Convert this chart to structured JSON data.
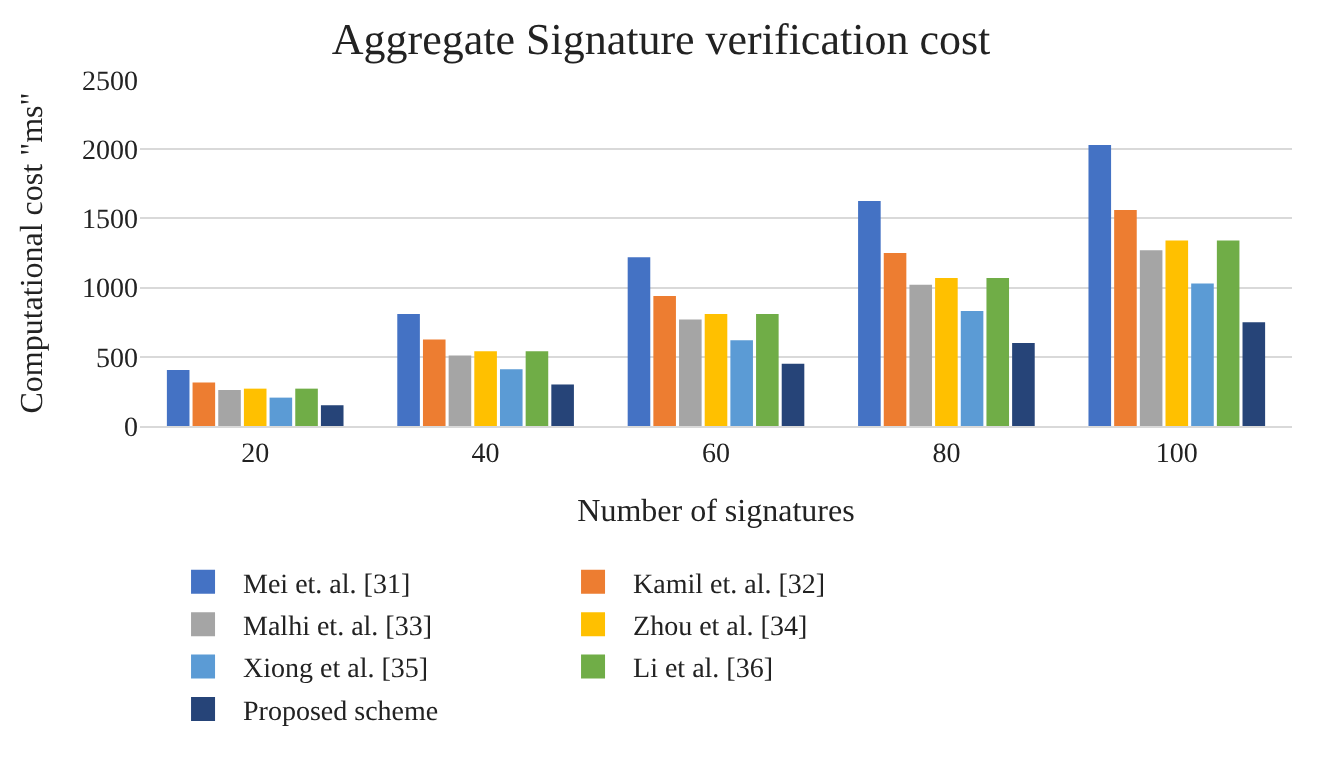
{
  "chart_data": {
    "type": "bar",
    "title": "Aggregate Signature verification cost",
    "xlabel": "Number of signatures",
    "ylabel": "Computational cost \"ms\"",
    "categories": [
      "20",
      "40",
      "60",
      "80",
      "100"
    ],
    "ylim": [
      0,
      2500
    ],
    "yticks": [
      0,
      500,
      1000,
      1500,
      2000,
      2500
    ],
    "grid": "y",
    "legend": "bottom",
    "series": [
      {
        "name": "Mei et. al. [31]",
        "color": "#4472c4",
        "values": [
          405,
          810,
          1220,
          1625,
          2030
        ]
      },
      {
        "name": "Kamil et. al. [32]",
        "color": "#ed7d31",
        "values": [
          315,
          625,
          940,
          1250,
          1560
        ]
      },
      {
        "name": "Malhi et. al. [33]",
        "color": "#a5a5a5",
        "values": [
          260,
          510,
          770,
          1020,
          1270
        ]
      },
      {
        "name": "Zhou et al. [34]",
        "color": "#ffc000",
        "values": [
          270,
          540,
          810,
          1070,
          1340
        ]
      },
      {
        "name": "Xiong et al. [35]",
        "color": "#5b9bd5",
        "values": [
          205,
          410,
          620,
          830,
          1030
        ]
      },
      {
        "name": "Li et al. [36]",
        "color": "#70ad47",
        "values": [
          270,
          540,
          810,
          1070,
          1340
        ]
      },
      {
        "name": "Proposed scheme",
        "color": "#264478",
        "values": [
          150,
          300,
          450,
          600,
          750
        ]
      }
    ]
  }
}
